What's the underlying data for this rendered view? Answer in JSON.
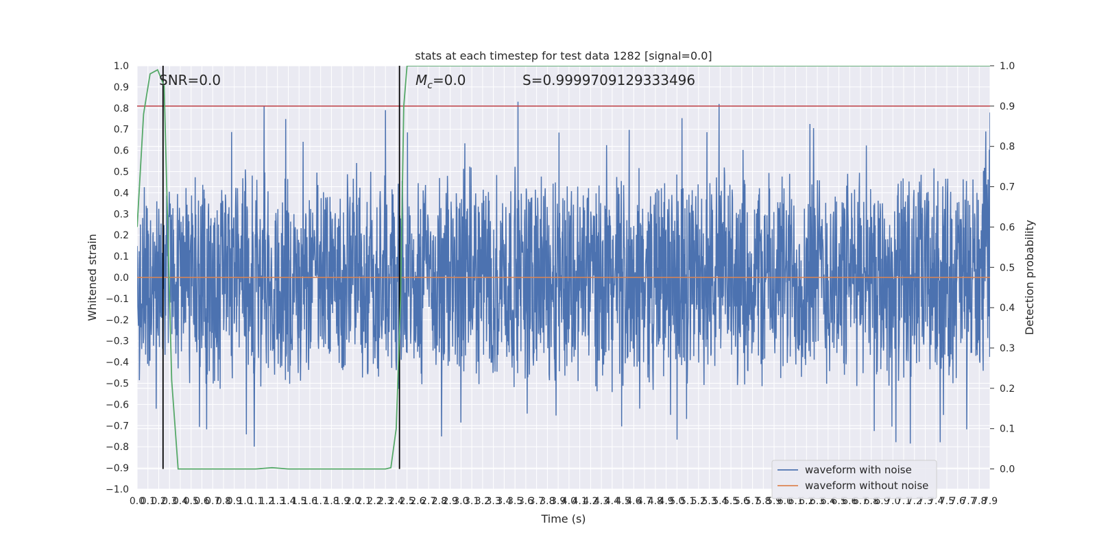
{
  "chart_data": {
    "type": "line",
    "title": "stats at each timestep for test data 1282 [signal=0.0]",
    "xlabel": "Time (s)",
    "ylabel": "Whitened strain",
    "ylabel_right": "Detection probability",
    "xlim": [
      0,
      7.9
    ],
    "ylim": [
      -1.0,
      1.0
    ],
    "ylim_right": [
      -0.05,
      1.0
    ],
    "x_ticks": [
      "0.0",
      "0.1",
      "0.2",
      "0.3",
      "0.4",
      "0.5",
      "0.6",
      "0.7",
      "0.8",
      "0.9",
      "1.0",
      "1.1",
      "1.2",
      "1.3",
      "1.4",
      "1.5",
      "1.6",
      "1.7",
      "1.8",
      "1.9",
      "2.0",
      "2.1",
      "2.2",
      "2.3",
      "2.4",
      "2.5",
      "2.6",
      "2.7",
      "2.8",
      "2.9",
      "3.0",
      "3.1",
      "3.2",
      "3.3",
      "3.4",
      "3.5",
      "3.6",
      "3.7",
      "3.8",
      "3.9",
      "4.0",
      "4.1",
      "4.2",
      "4.3",
      "4.4",
      "4.5",
      "4.6",
      "4.7",
      "4.8",
      "4.9",
      "5.0",
      "5.1",
      "5.2",
      "5.3",
      "5.4",
      "5.5",
      "5.6",
      "5.7",
      "5.8",
      "5.9",
      "6.0",
      "6.1",
      "6.2",
      "6.3",
      "6.4",
      "6.5",
      "6.6",
      "6.7",
      "6.8",
      "6.9",
      "7.0",
      "7.1",
      "7.2",
      "7.3",
      "7.4",
      "7.5",
      "7.6",
      "7.7",
      "7.8",
      "7.9"
    ],
    "y_ticks": [
      "−1.0",
      "−0.9",
      "−0.8",
      "−0.7",
      "−0.6",
      "−0.5",
      "−0.4",
      "−0.3",
      "−0.2",
      "−0.1",
      "0.0",
      "0.1",
      "0.2",
      "0.3",
      "0.4",
      "0.5",
      "0.6",
      "0.7",
      "0.8",
      "0.9",
      "1.0"
    ],
    "y_ticks_right": [
      "0.0",
      "0.1",
      "0.2",
      "0.3",
      "0.4",
      "0.5",
      "0.6",
      "0.7",
      "0.8",
      "0.9",
      "1.0"
    ],
    "annotations": {
      "snr": "SNR=0.0",
      "mc_symbol": "M",
      "mc_sub": "c",
      "mc_value": "=0.0",
      "s": "S=0.9999709129333496"
    },
    "threshold": 0.9,
    "vertical_lines": [
      0.24,
      2.43
    ],
    "waveform_without_noise": 0.0,
    "detection_probability": {
      "x": [
        0.0,
        0.06,
        0.12,
        0.19,
        0.25,
        0.32,
        0.38,
        0.5,
        1.0,
        1.1,
        1.2,
        1.25,
        1.3,
        1.4,
        1.5,
        2.0,
        2.3,
        2.35,
        2.4,
        2.44,
        2.47,
        2.5,
        3.0,
        4.0,
        5.0,
        6.0,
        7.0,
        7.9
      ],
      "y": [
        0.6,
        0.88,
        0.98,
        0.99,
        0.95,
        0.22,
        0.0,
        0.0,
        0.0,
        0.0,
        0.002,
        0.003,
        0.002,
        0.0,
        0.0,
        0.0,
        0.0,
        0.003,
        0.1,
        0.42,
        0.9,
        1.0,
        1.0,
        1.0,
        1.0,
        1.0,
        1.0,
        1.0
      ]
    },
    "noise_envelope": {
      "typical_positive_peak": 0.55,
      "max": 1.0,
      "min": -0.9
    },
    "legend": {
      "position": "lower-right",
      "entries": [
        {
          "label": "waveform with noise",
          "color": "#4c72b0"
        },
        {
          "label": "waveform without noise",
          "color": "#dd8452"
        }
      ]
    },
    "grid": true,
    "colors": {
      "noise": "#4c72b0",
      "clean": "#dd8452",
      "probability": "#55a868",
      "threshold": "#c44e52",
      "vline": "#000000",
      "background": "#eaeaf2"
    }
  }
}
